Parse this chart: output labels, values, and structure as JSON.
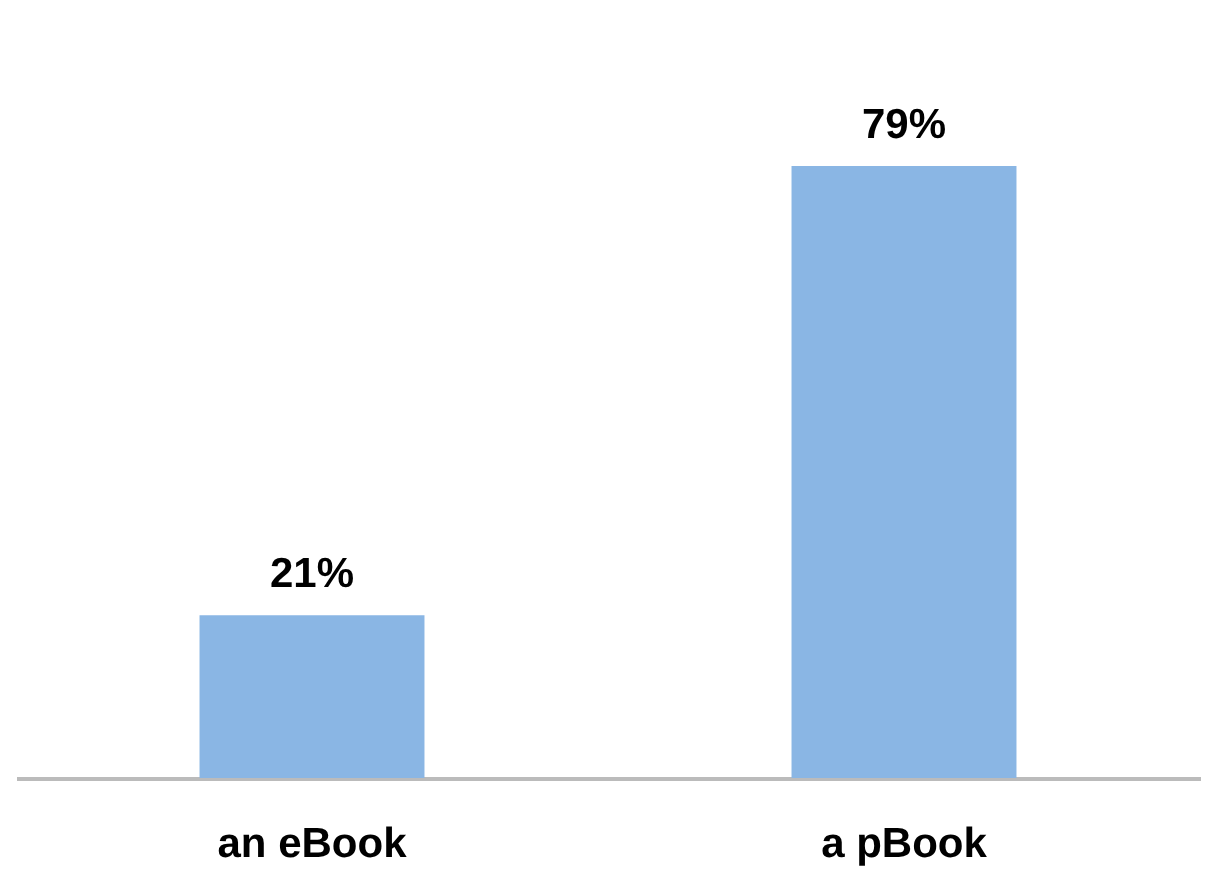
{
  "chart_data": {
    "type": "bar",
    "categories": [
      "an eBook",
      "a pBook"
    ],
    "values": [
      21,
      79
    ],
    "value_labels": [
      "21%",
      "79%"
    ],
    "color": "#8ab6e4"
  }
}
